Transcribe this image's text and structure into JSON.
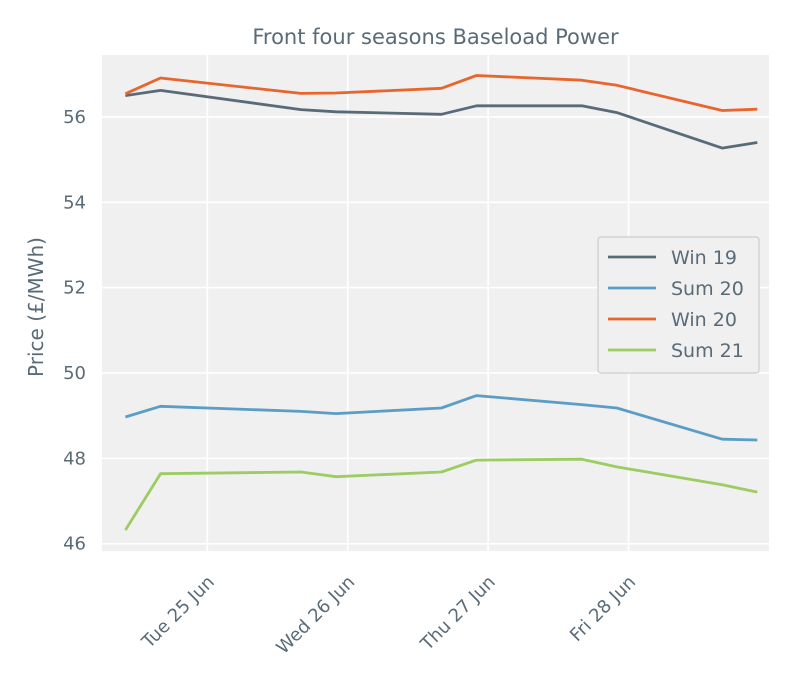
{
  "chart_data": {
    "type": "line",
    "title": "Front four seasons Baseload Power",
    "xlabel": "",
    "ylabel": "Price (£/MWh)",
    "x": [
      "2019-06-24 10:00",
      "2019-06-24 16:00",
      "2019-06-25 16:00",
      "2019-06-25 22:00",
      "2019-06-26 16:00",
      "2019-06-26 22:00",
      "2019-06-27 16:00",
      "2019-06-27 22:00",
      "2019-06-28 16:00",
      "2019-06-28 22:00"
    ],
    "series": [
      {
        "name": "Win 19",
        "color": "#5a6b78",
        "values": [
          56.5,
          56.62,
          56.17,
          56.12,
          56.06,
          56.26,
          56.26,
          56.1,
          55.27,
          55.4
        ]
      },
      {
        "name": "Sum 20",
        "color": "#5c9dc5",
        "values": [
          48.97,
          49.22,
          49.1,
          49.05,
          49.18,
          49.47,
          49.26,
          49.18,
          48.45,
          48.43
        ]
      },
      {
        "name": "Win 20",
        "color": "#e8652d",
        "values": [
          56.54,
          56.91,
          56.55,
          56.56,
          56.67,
          56.97,
          56.86,
          56.74,
          56.15,
          56.18
        ]
      },
      {
        "name": "Sum 21",
        "color": "#9ccc62",
        "values": [
          46.32,
          47.64,
          47.68,
          47.57,
          47.68,
          47.96,
          47.98,
          47.8,
          47.38,
          47.21
        ]
      }
    ],
    "xticks": [
      "Tue 25 Jun",
      "Wed 26 Jun",
      "Thu 27 Jun",
      "Fri 28 Jun"
    ],
    "yticks": [
      46,
      48,
      50,
      52,
      54,
      56
    ],
    "ylim": [
      45.83,
      57.45
    ],
    "xlim": [
      "2019-06-24 06:00",
      "2019-06-29 00:00"
    ],
    "grid": true,
    "legend_position": "center-right"
  }
}
